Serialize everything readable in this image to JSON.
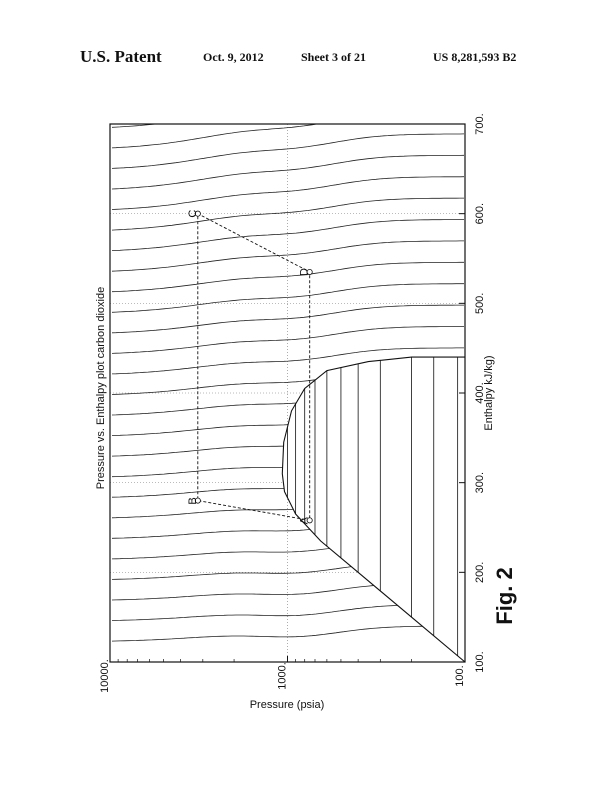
{
  "header": {
    "patent_label": "U.S. Patent",
    "date": "Oct. 9, 2012",
    "sheet": "Sheet 3 of 21",
    "patent_number": "US 8,281,593 B2"
  },
  "figure": {
    "caption": "Fig. 2"
  },
  "chart_data": {
    "type": "line",
    "title": "Pressure vs. Enthalpy plot carbon dioxide",
    "xlabel": "Enthalpy  kJ/kg)",
    "ylabel": "Pressure (psia)",
    "x_scale": "linear",
    "y_scale": "log",
    "xlim": [
      100,
      700
    ],
    "ylim": [
      100,
      10000
    ],
    "x_ticks": [
      "100.",
      "200.",
      "300.",
      "400.",
      "500.",
      "600.",
      "700."
    ],
    "y_ticks": [
      "100.",
      "1000.",
      "10000."
    ],
    "grid": true,
    "points": [
      {
        "label": "A",
        "x": 258,
        "y": 750
      },
      {
        "label": "B",
        "x": 280,
        "y": 3200
      },
      {
        "label": "C",
        "x": 600,
        "y": 3200
      },
      {
        "label": "D",
        "x": 535,
        "y": 750
      }
    ],
    "cycle": [
      "A",
      "B",
      "C",
      "D",
      "A"
    ],
    "saturation_dome": {
      "liquid": [
        [
          100,
          100
        ],
        [
          150,
          200
        ],
        [
          200,
          400
        ],
        [
          235,
          650
        ],
        [
          265,
          900
        ],
        [
          290,
          1040
        ],
        [
          310,
          1070
        ]
      ],
      "vapor": [
        [
          310,
          1070
        ],
        [
          345,
          1050
        ],
        [
          380,
          950
        ],
        [
          405,
          800
        ],
        [
          425,
          600
        ],
        [
          435,
          350
        ],
        [
          440,
          200
        ],
        [
          440,
          100
        ]
      ]
    }
  }
}
